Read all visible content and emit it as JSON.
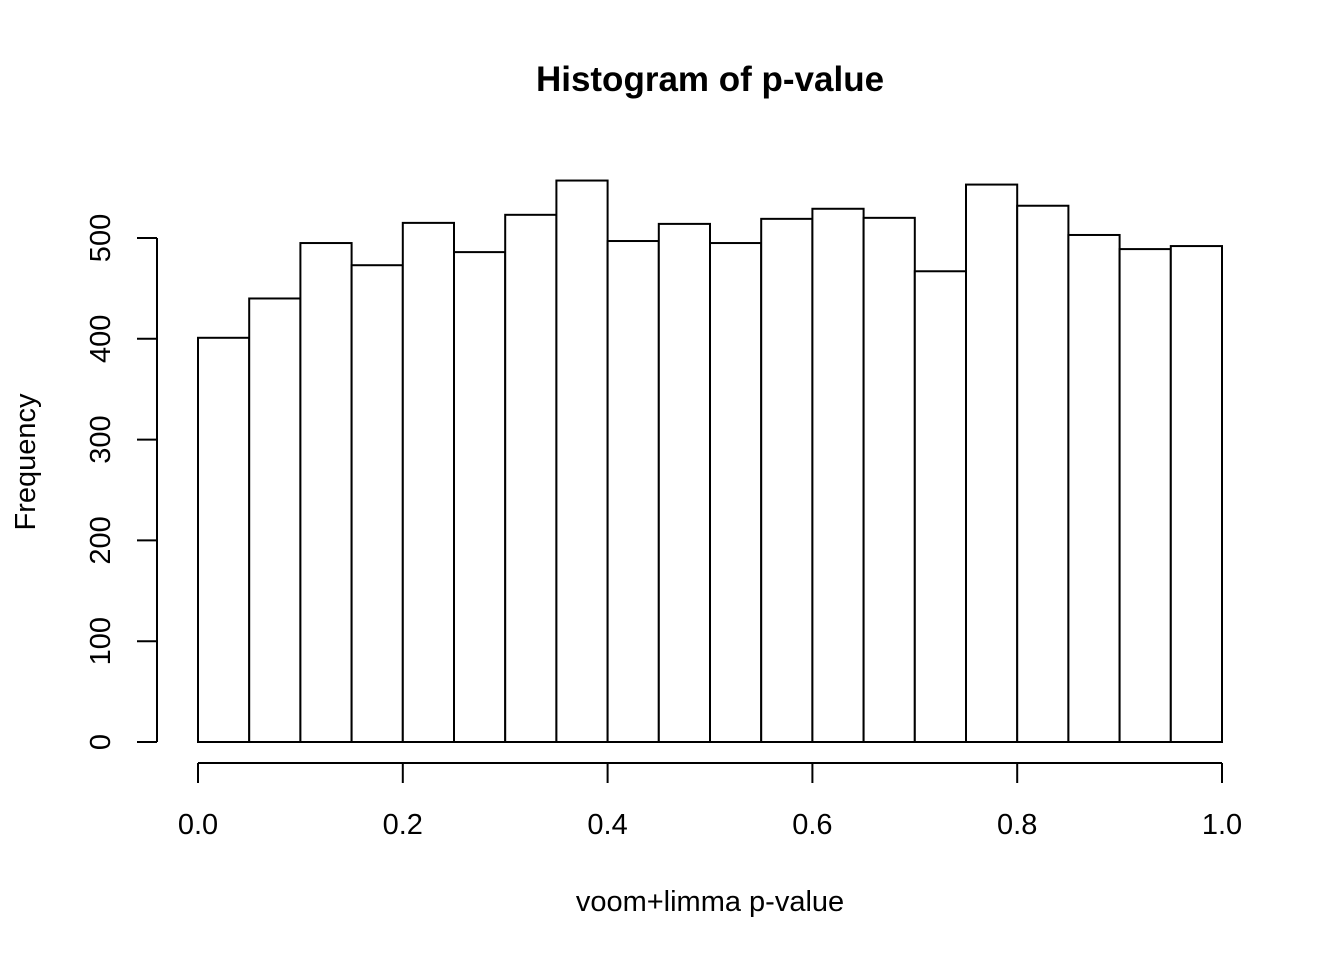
{
  "chart_data": {
    "type": "bar",
    "title": "Histogram of p-value",
    "xlabel": "voom+limma p-value",
    "ylabel": "Frequency",
    "xlim": [
      0.0,
      1.0
    ],
    "ylim": [
      0,
      560
    ],
    "bin_width": 0.05,
    "bins": [
      {
        "start": 0.0,
        "end": 0.05,
        "count": 401
      },
      {
        "start": 0.05,
        "end": 0.1,
        "count": 440
      },
      {
        "start": 0.1,
        "end": 0.15,
        "count": 495
      },
      {
        "start": 0.15,
        "end": 0.2,
        "count": 473
      },
      {
        "start": 0.2,
        "end": 0.25,
        "count": 515
      },
      {
        "start": 0.25,
        "end": 0.3,
        "count": 486
      },
      {
        "start": 0.3,
        "end": 0.35,
        "count": 523
      },
      {
        "start": 0.35,
        "end": 0.4,
        "count": 557
      },
      {
        "start": 0.4,
        "end": 0.45,
        "count": 497
      },
      {
        "start": 0.45,
        "end": 0.5,
        "count": 514
      },
      {
        "start": 0.5,
        "end": 0.55,
        "count": 495
      },
      {
        "start": 0.55,
        "end": 0.6,
        "count": 519
      },
      {
        "start": 0.6,
        "end": 0.65,
        "count": 529
      },
      {
        "start": 0.65,
        "end": 0.7,
        "count": 520
      },
      {
        "start": 0.7,
        "end": 0.75,
        "count": 467
      },
      {
        "start": 0.75,
        "end": 0.8,
        "count": 553
      },
      {
        "start": 0.8,
        "end": 0.85,
        "count": 532
      },
      {
        "start": 0.85,
        "end": 0.9,
        "count": 503
      },
      {
        "start": 0.9,
        "end": 0.95,
        "count": 489
      },
      {
        "start": 0.95,
        "end": 1.0,
        "count": 492
      }
    ],
    "x_ticks": [
      {
        "value": 0.0,
        "label": "0.0"
      },
      {
        "value": 0.2,
        "label": "0.2"
      },
      {
        "value": 0.4,
        "label": "0.4"
      },
      {
        "value": 0.6,
        "label": "0.6"
      },
      {
        "value": 0.8,
        "label": "0.8"
      },
      {
        "value": 1.0,
        "label": "1.0"
      }
    ],
    "y_ticks": [
      {
        "value": 0,
        "label": "0"
      },
      {
        "value": 100,
        "label": "100"
      },
      {
        "value": 200,
        "label": "200"
      },
      {
        "value": 300,
        "label": "300"
      },
      {
        "value": 400,
        "label": "400"
      },
      {
        "value": 500,
        "label": "500"
      }
    ],
    "grid": false,
    "legend": "none",
    "colors": {
      "bar_fill": "#ffffff",
      "bar_stroke": "#000000",
      "text": "#000000",
      "background": "#ffffff"
    }
  }
}
